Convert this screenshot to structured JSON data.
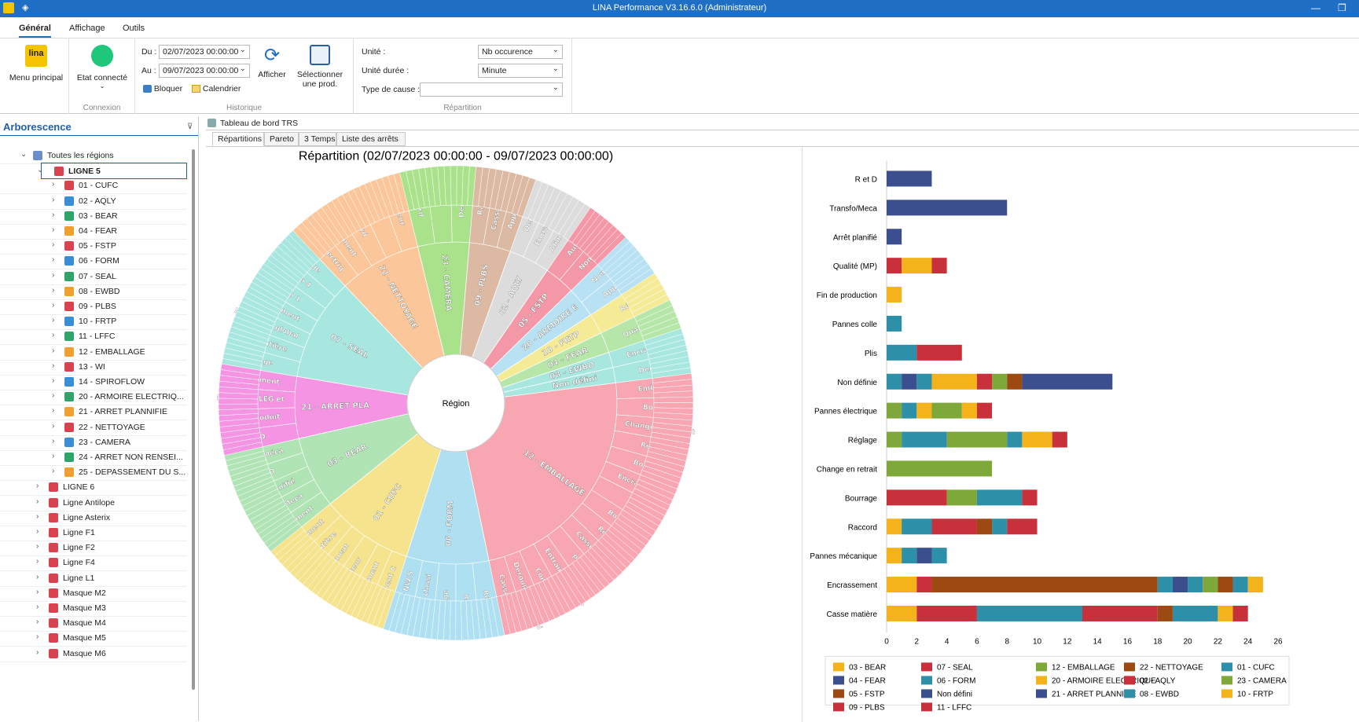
{
  "window": {
    "title": "LINA Performance  V3.16.6.0  (Administrateur)"
  },
  "menu": {
    "tabs": [
      "Général",
      "Affichage",
      "Outils"
    ]
  },
  "ribbon": {
    "menu_principal": "Menu principal",
    "etat_connecte": "Etat connecté",
    "connexion_label": "Connexion",
    "du_label": "Du :",
    "du_value": "02/07/2023 00:00:00",
    "au_label": "Au :",
    "au_value": "09/07/2023 00:00:00",
    "bloquer": "Bloquer",
    "calendrier": "Calendrier",
    "afficher": "Afficher",
    "selectionner_1": "Sélectionner",
    "selectionner_2": "une prod.",
    "historique_label": "Historique",
    "unite_label": "Unité :",
    "unite_value": "Nb occurence",
    "unite_duree_label": "Unité durée :",
    "unite_duree_value": "Minute",
    "type_cause_label": "Type de cause :",
    "type_cause_value": "",
    "repartition_label": "Répartition",
    "logo_text": "lina"
  },
  "tree": {
    "header": "Arborescence",
    "root": "Toutes les régions",
    "selected": "LIGNE 5",
    "children": [
      "01 - CUFC",
      "02 - AQLY",
      "03 - BEAR",
      "04 - FEAR",
      "05 - FSTP",
      "06 - FORM",
      "07 - SEAL",
      "08 - EWBD",
      "09 - PLBS",
      "10 - FRTP",
      "11 - LFFC",
      "12 - EMBALLAGE",
      "13 - WI",
      "14 - SPIROFLOW",
      "20 - ARMOIRE ELECTRIQ...",
      "21 - ARRET PLANNIFIE",
      "22 - NETTOYAGE",
      "23 - CAMERA",
      "24 - ARRET NON RENSEI...",
      "25 - DEPASSEMENT DU S..."
    ],
    "others": [
      "LIGNE 6",
      "Ligne Antilope",
      "Ligne Asterix",
      "Ligne F1",
      "Ligne F2",
      "Ligne F4",
      "Ligne L1",
      "Masque M2",
      "Masque M3",
      "Masque M4",
      "Masque M5",
      "Masque M6"
    ]
  },
  "doc_tab": "Tableau de bord TRS",
  "subtabs": [
    "Répartitions",
    "Pareto",
    "3 Temps",
    "Liste des arrêts"
  ],
  "sunburst": {
    "title": "Répartition (02/07/2023 00:00:00 - 09/07/2023 00:00:00)",
    "center": "Région",
    "inner": [
      {
        "label": "12 - EMBALLAGE",
        "value": 23,
        "color": "#f7a6b2"
      },
      {
        "label": "06 - FORM",
        "value": 8,
        "color": "#aee0f2"
      },
      {
        "label": "01 - CUFC",
        "value": 9,
        "color": "#f5e38e"
      },
      {
        "label": "03 - BEAR",
        "value": 7,
        "color": "#b0e4b5"
      },
      {
        "label": "21 - ARRET PLA",
        "value": 6,
        "color": "#f694e4"
      },
      {
        "label": "07 - SEAL",
        "value": 10,
        "color": "#a8e6e0"
      },
      {
        "label": "22 - NETTOYAGE",
        "value": 8,
        "color": "#fbc69a"
      },
      {
        "label": "23 - CAMERA",
        "value": 5,
        "color": "#a9e28a"
      },
      {
        "label": "09 - PLBS",
        "value": 4,
        "color": "#dcb9a2"
      },
      {
        "label": "02 - AQLY",
        "value": 4,
        "color": "#dcdcdc"
      },
      {
        "label": "05 - FSTP",
        "value": 3,
        "color": "#f497a6"
      },
      {
        "label": "20 - ARMOIRE E",
        "value": 3,
        "color": "#b8e2f3"
      },
      {
        "label": "10 - FRTP",
        "value": 2,
        "color": "#f5ea96"
      },
      {
        "label": "04 - FEAR",
        "value": 2,
        "color": "#b7e7a8"
      },
      {
        "label": "08 - EWBD",
        "value": 1.5,
        "color": "#a8e6e0"
      },
      {
        "label": "Non défini",
        "value": 1.5,
        "color": "#a8e6e0"
      }
    ],
    "outer_labels": [
      "Emballeuse",
      "Bourrage",
      "Change en retrait",
      "Réglage",
      "Bourrage",
      "Encrassement",
      "Plis",
      "Bourrage",
      "Réglage",
      "Casse matière",
      "Presse",
      "Entrainement UP",
      "Convoyeur",
      "Derouleur UP/Whi",
      "Casse matière",
      "Réglage",
      "Rocord",
      "Bourrage",
      "Derouleur classi",
      "Derouleur NW/S",
      "Entrainement C",
      "Encrassement",
      "Applicateur",
      "Entrainement",
      "Casse matière",
      "Encrassement",
      "Encrassement",
      "Transfo/Meca",
      "Arrêt planifié",
      "R et D",
      "Transfo/Méca",
      "R et D",
      "Presse produit",
      "Derouleur LEG et",
      "Encrassement",
      "Bourrage",
      "Casse matière",
      "Nettoyage global",
      "Encrassement",
      "Camera 1",
      "Camera 4",
      "Réglage",
      "Pannes électriq",
      "Entrainement",
      "Raccord",
      "Plis",
      "Derouleur",
      "Raccord",
      "Plis",
      "Derouleur",
      "Raccord",
      "Casse matière",
      "Applicateur",
      "Derouleur",
      "Encrassement",
      "Alimentation",
      "Automate",
      "Non définie",
      "Non définie",
      "Applicateur",
      "Réglage",
      "Qualité (MP)",
      "Encrassement",
      "Derouleur",
      "Casse matière",
      "Non définie",
      "Non définie"
    ]
  },
  "chart_data": {
    "type": "bar",
    "orientation": "horizontal",
    "stacked": true,
    "xlim": [
      0,
      26
    ],
    "xticks": [
      0,
      2,
      4,
      6,
      8,
      10,
      12,
      14,
      16,
      18,
      20,
      22,
      24,
      26
    ],
    "categories": [
      "R et D",
      "Transfo/Meca",
      "Arrêt planifié",
      "Qualité (MP)",
      "Fin de production",
      "Pannes colle",
      "Plis",
      "Non définie",
      "Pannes électrique",
      "Réglage",
      "Change en retrait",
      "Bourrage",
      "Raccord",
      "Pannes mécanique",
      "Encrassement",
      "Casse matière"
    ],
    "segments": [
      [
        {
          "s": "21 - ARRET PLANNIFIE",
          "v": 3
        }
      ],
      [
        {
          "s": "21 - ARRET PLANNIFIE",
          "v": 8
        }
      ],
      [
        {
          "s": "21 - ARRET PLANNIFIE",
          "v": 1
        }
      ],
      [
        {
          "s": "07 - SEAL",
          "v": 1
        },
        {
          "s": "03 - BEAR",
          "v": 2
        },
        {
          "s": "02 - AQLY",
          "v": 1
        }
      ],
      [
        {
          "s": "03 - BEAR",
          "v": 1
        }
      ],
      [
        {
          "s": "06 - FORM",
          "v": 1
        }
      ],
      [
        {
          "s": "06 - FORM",
          "v": 2
        },
        {
          "s": "07 - SEAL",
          "v": 3
        }
      ],
      [
        {
          "s": "06 - FORM",
          "v": 1
        },
        {
          "s": "21 - ARRET PLANNIFIE",
          "v": 1
        },
        {
          "s": "08 - EWBD",
          "v": 1
        },
        {
          "s": "03 - BEAR",
          "v": 3
        },
        {
          "s": "02 - AQLY",
          "v": 1
        },
        {
          "s": "12 - EMBALLAGE",
          "v": 1
        },
        {
          "s": "22 - NETTOYAGE",
          "v": 1
        },
        {
          "s": "Non défini",
          "v": 6
        }
      ],
      [
        {
          "s": "12 - EMBALLAGE",
          "v": 1
        },
        {
          "s": "06 - FORM",
          "v": 1
        },
        {
          "s": "10 - FRTP",
          "v": 1
        },
        {
          "s": "23 - CAMERA",
          "v": 2
        },
        {
          "s": "03 - BEAR",
          "v": 1
        },
        {
          "s": "07 - SEAL",
          "v": 1
        }
      ],
      [
        {
          "s": "12 - EMBALLAGE",
          "v": 1
        },
        {
          "s": "06 - FORM",
          "v": 3
        },
        {
          "s": "23 - CAMERA",
          "v": 4
        },
        {
          "s": "08 - EWBD",
          "v": 1
        },
        {
          "s": "03 - BEAR",
          "v": 2
        },
        {
          "s": "02 - AQLY",
          "v": 1
        }
      ],
      [
        {
          "s": "12 - EMBALLAGE",
          "v": 7
        }
      ],
      [
        {
          "s": "07 - SEAL",
          "v": 4
        },
        {
          "s": "12 - EMBALLAGE",
          "v": 2
        },
        {
          "s": "06 - FORM",
          "v": 3
        },
        {
          "s": "02 - AQLY",
          "v": 1
        }
      ],
      [
        {
          "s": "03 - BEAR",
          "v": 1
        },
        {
          "s": "06 - FORM",
          "v": 2
        },
        {
          "s": "07 - SEAL",
          "v": 3
        },
        {
          "s": "22 - NETTOYAGE",
          "v": 1
        },
        {
          "s": "08 - EWBD",
          "v": 1
        },
        {
          "s": "02 - AQLY",
          "v": 2
        }
      ],
      [
        {
          "s": "03 - BEAR",
          "v": 1
        },
        {
          "s": "06 - FORM",
          "v": 1
        },
        {
          "s": "21 - ARRET PLANNIFIE",
          "v": 1
        },
        {
          "s": "08 - EWBD",
          "v": 1
        }
      ],
      [
        {
          "s": "03 - BEAR",
          "v": 2
        },
        {
          "s": "07 - SEAL",
          "v": 1
        },
        {
          "s": "22 - NETTOYAGE",
          "v": 15
        },
        {
          "s": "06 - FORM",
          "v": 1
        },
        {
          "s": "21 - ARRET PLANNIFIE",
          "v": 1
        },
        {
          "s": "08 - EWBD",
          "v": 1
        },
        {
          "s": "12 - EMBALLAGE",
          "v": 1
        },
        {
          "s": "22 - NETTOYAGE",
          "v": 1
        },
        {
          "s": "06 - FORM",
          "v": 1
        },
        {
          "s": "03 - BEAR",
          "v": 1
        }
      ],
      [
        {
          "s": "03 - BEAR",
          "v": 2
        },
        {
          "s": "07 - SEAL",
          "v": 4
        },
        {
          "s": "06 - FORM",
          "v": 7
        },
        {
          "s": "02 - AQLY",
          "v": 5
        },
        {
          "s": "22 - NETTOYAGE",
          "v": 1
        },
        {
          "s": "06 - FORM",
          "v": 3
        },
        {
          "s": "10 - FRTP",
          "v": 1
        },
        {
          "s": "11 - LFFC",
          "v": 1
        }
      ]
    ],
    "legend": [
      {
        "name": "03 - BEAR",
        "color": "#f5b31b"
      },
      {
        "name": "07 - SEAL",
        "color": "#c8303c"
      },
      {
        "name": "12 - EMBALLAGE",
        "color": "#7ea83a"
      },
      {
        "name": "22 - NETTOYAGE",
        "color": "#9c4a12"
      },
      {
        "name": "01 - CUFC",
        "color": "#2e8fa8"
      },
      {
        "name": "04 - FEAR",
        "color": "#3b4f8e"
      },
      {
        "name": "06 - FORM",
        "color": "#2e8fa8"
      },
      {
        "name": "20 - ARMOIRE ELECTRIQUE",
        "color": "#f5b31b"
      },
      {
        "name": "02 - AQLY",
        "color": "#c8303c"
      },
      {
        "name": "23 - CAMERA",
        "color": "#7ea83a"
      },
      {
        "name": "05 - FSTP",
        "color": "#9c4a12"
      },
      {
        "name": "Non défini",
        "color": "#3b4f8e"
      },
      {
        "name": "21 - ARRET PLANNIFIE",
        "color": "#3b4f8e"
      },
      {
        "name": "08 - EWBD",
        "color": "#2e8fa8"
      },
      {
        "name": "10 - FRTP",
        "color": "#f5b31b"
      },
      {
        "name": "09 - PLBS",
        "color": "#c8303c"
      },
      {
        "name": "11 - LFFC",
        "color": "#c8303c"
      }
    ]
  }
}
